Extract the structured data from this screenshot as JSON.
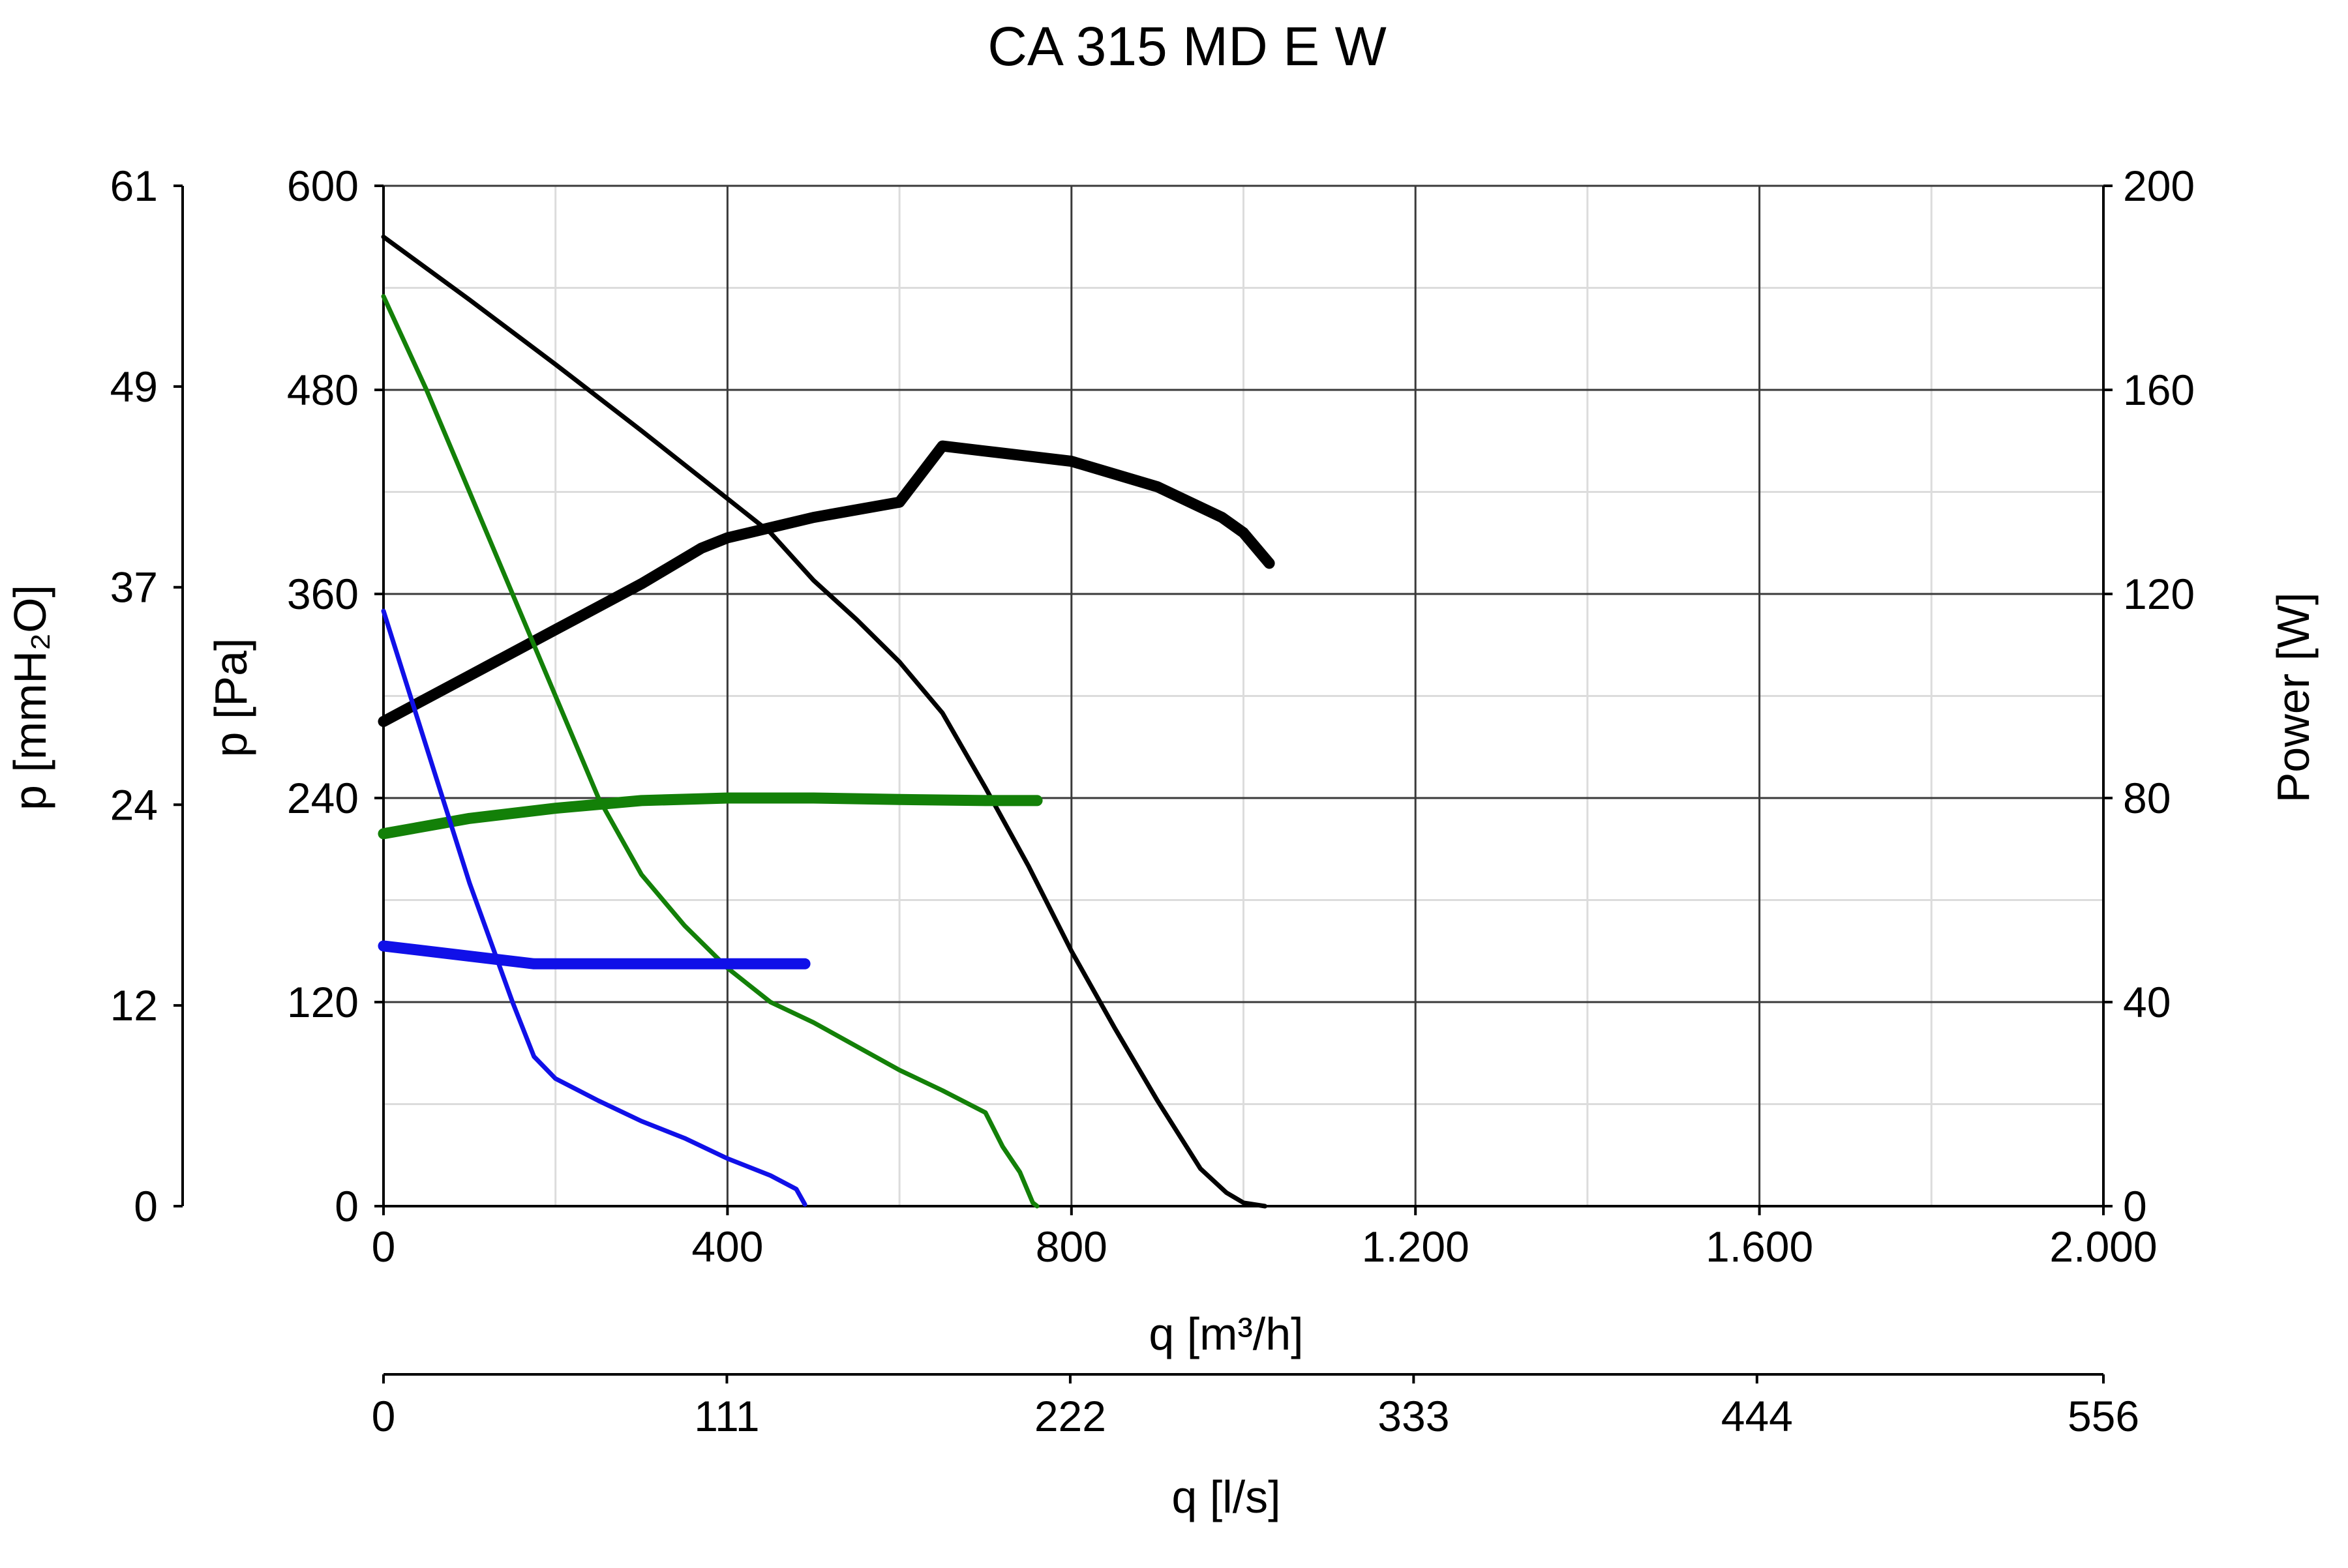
{
  "chart_data": {
    "type": "line",
    "title": "CA 315 MD E W",
    "x_axis": {
      "label": "q [m³/h]",
      "range": [
        0,
        2000
      ],
      "ticks": [
        0,
        400,
        800,
        1200,
        1600,
        2000
      ],
      "tick_labels": [
        "0",
        "400",
        "800",
        "1.200",
        "1.600",
        "2.000"
      ],
      "minor_ticks": [
        200,
        600,
        1000,
        1400,
        1800
      ]
    },
    "x2_axis": {
      "label": "q [l/s]",
      "range": [
        0,
        556
      ],
      "ticks": [
        0,
        111,
        222,
        333,
        444,
        556
      ],
      "tick_labels": [
        "0",
        "111",
        "222",
        "333",
        "444",
        "556"
      ]
    },
    "y_axis": {
      "label": "p [Pa]",
      "range": [
        0,
        600
      ],
      "ticks": [
        0,
        120,
        240,
        360,
        480,
        600
      ],
      "tick_labels": [
        "0",
        "120",
        "240",
        "360",
        "480",
        "600"
      ],
      "minor_ticks": [
        60,
        180,
        300,
        420,
        540
      ]
    },
    "y_left_outer_axis": {
      "label": "p [mmH₂O]",
      "range": [
        0,
        61
      ],
      "ticks": [
        0,
        12,
        24,
        37,
        49,
        61
      ],
      "tick_labels": [
        "0",
        "12",
        "24",
        "37",
        "49",
        "61"
      ]
    },
    "y_right_axis": {
      "label": "Power [W]",
      "range": [
        0,
        200
      ],
      "ticks": [
        0,
        40,
        80,
        120,
        160,
        200
      ],
      "tick_labels": [
        "0",
        "40",
        "80",
        "120",
        "160",
        "200"
      ]
    },
    "grid": true,
    "legend": "none",
    "series": [
      {
        "color": "#000000",
        "axis": "pressure",
        "stroke": "thin",
        "points": [
          [
            0,
            570
          ],
          [
            100,
            533
          ],
          [
            200,
            495
          ],
          [
            300,
            456
          ],
          [
            400,
            416
          ],
          [
            450,
            396
          ],
          [
            500,
            368
          ],
          [
            550,
            345
          ],
          [
            600,
            320
          ],
          [
            650,
            290
          ],
          [
            700,
            246
          ],
          [
            750,
            200
          ],
          [
            800,
            150
          ],
          [
            850,
            105
          ],
          [
            900,
            62
          ],
          [
            950,
            22
          ],
          [
            980,
            8
          ],
          [
            1000,
            2
          ],
          [
            1025,
            0
          ]
        ]
      },
      {
        "color": "#000000",
        "axis": "power",
        "stroke": "thick",
        "points": [
          [
            0,
            95
          ],
          [
            100,
            104
          ],
          [
            200,
            113
          ],
          [
            300,
            122
          ],
          [
            370,
            129
          ],
          [
            400,
            131
          ],
          [
            500,
            135
          ],
          [
            600,
            138
          ],
          [
            650,
            149
          ],
          [
            700,
            148
          ],
          [
            800,
            146
          ],
          [
            900,
            141
          ],
          [
            975,
            135
          ],
          [
            1000,
            132
          ],
          [
            1030,
            126
          ]
        ]
      },
      {
        "color": "#138008",
        "axis": "pressure",
        "stroke": "thin",
        "points": [
          [
            0,
            535
          ],
          [
            50,
            480
          ],
          [
            100,
            420
          ],
          [
            150,
            360
          ],
          [
            200,
            300
          ],
          [
            250,
            240
          ],
          [
            300,
            195
          ],
          [
            350,
            165
          ],
          [
            400,
            140
          ],
          [
            450,
            120
          ],
          [
            500,
            108
          ],
          [
            600,
            80
          ],
          [
            650,
            68
          ],
          [
            700,
            55
          ],
          [
            720,
            35
          ],
          [
            740,
            20
          ],
          [
            755,
            2
          ],
          [
            760,
            0
          ]
        ]
      },
      {
        "color": "#138008",
        "axis": "power",
        "stroke": "thick",
        "points": [
          [
            0,
            73
          ],
          [
            100,
            76
          ],
          [
            200,
            78
          ],
          [
            300,
            79.5
          ],
          [
            400,
            80
          ],
          [
            500,
            80
          ],
          [
            600,
            79.7
          ],
          [
            700,
            79.5
          ],
          [
            760,
            79.5
          ]
        ]
      },
      {
        "color": "#1010e8",
        "axis": "pressure",
        "stroke": "thin",
        "points": [
          [
            0,
            350
          ],
          [
            50,
            270
          ],
          [
            100,
            190
          ],
          [
            150,
            120
          ],
          [
            175,
            88
          ],
          [
            200,
            75
          ],
          [
            250,
            62
          ],
          [
            300,
            50
          ],
          [
            350,
            40
          ],
          [
            400,
            28
          ],
          [
            450,
            18
          ],
          [
            480,
            10
          ],
          [
            490,
            1
          ]
        ]
      },
      {
        "color": "#1010e8",
        "axis": "power",
        "stroke": "thick",
        "points": [
          [
            0,
            51
          ],
          [
            100,
            49
          ],
          [
            175,
            47.5
          ],
          [
            300,
            47.5
          ],
          [
            400,
            47.5
          ],
          [
            490,
            47.5
          ]
        ]
      }
    ]
  }
}
